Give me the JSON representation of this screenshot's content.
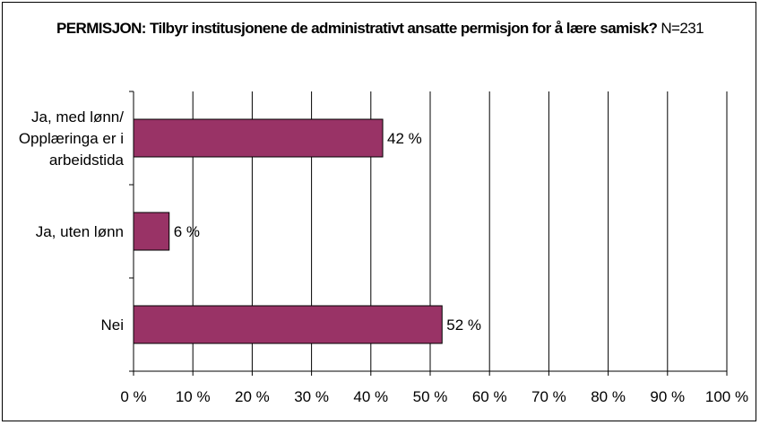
{
  "chart_data": {
    "type": "bar",
    "orientation": "horizontal",
    "title_bold": "PERMISJON: Tilbyr institusjonene de administrativt ansatte permisjon for å lære samisk?",
    "title_rest": "N=231",
    "categories": [
      [
        "Ja, med lønn/",
        "Opplæringa er i",
        "arbeidstida"
      ],
      [
        "Ja, uten lønn"
      ],
      [
        "Nei"
      ]
    ],
    "values": [
      42,
      6,
      52
    ],
    "data_labels": [
      "42 %",
      "6 %",
      "52 %"
    ],
    "xlim": [
      0,
      100
    ],
    "xticks": [
      0,
      10,
      20,
      30,
      40,
      50,
      60,
      70,
      80,
      90,
      100
    ],
    "xtick_labels": [
      "0 %",
      "10 %",
      "20 %",
      "30 %",
      "40 %",
      "50 %",
      "60 %",
      "70 %",
      "80 %",
      "90 %",
      "100 %"
    ],
    "grid": "vertical",
    "bar_color": "#993366",
    "legend": "none"
  }
}
